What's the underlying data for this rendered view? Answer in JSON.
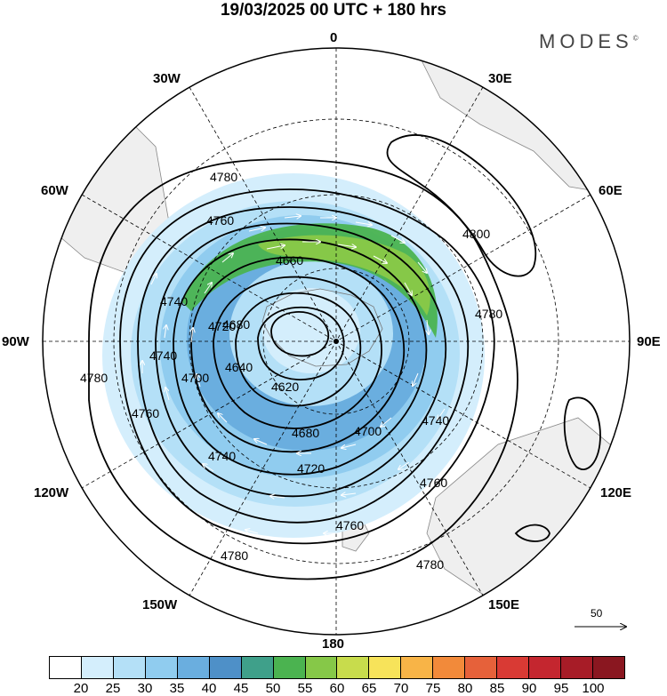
{
  "title": "19/03/2025  00 UTC  + 180 hrs",
  "brand": "MODES",
  "brand_mark": "©",
  "longitude_labels": {
    "top": "0",
    "tr": "30E",
    "tl": "30W",
    "r1": "60E",
    "l1": "60W",
    "right": "90E",
    "left": "90W",
    "r2": "120E",
    "l2": "120W",
    "br": "150E",
    "bl": "150W",
    "bottom": "180"
  },
  "contour_labels": [
    "4780",
    "4760",
    "4740",
    "4740",
    "4720",
    "4700",
    "4680",
    "4660",
    "4640",
    "4620",
    "4800",
    "4780",
    "4780",
    "4760",
    "4700",
    "4680",
    "4720",
    "4760",
    "4780",
    "4740",
    "4760",
    "4740",
    "4780"
  ],
  "vector_reference": "50",
  "colorbar": {
    "colors": [
      "#ffffff",
      "#d4eefc",
      "#b4e0f7",
      "#90ccef",
      "#6aaedf",
      "#4e90c8",
      "#3fa08a",
      "#4bb350",
      "#86c848",
      "#c8dc4c",
      "#f7e35a",
      "#f8b447",
      "#f28a3a",
      "#e6613a",
      "#d93a34",
      "#c4262f",
      "#a71c27",
      "#8a1720"
    ],
    "ticks": [
      "20",
      "25",
      "30",
      "35",
      "40",
      "45",
      "50",
      "55",
      "60",
      "65",
      "70",
      "75",
      "80",
      "85",
      "90",
      "95",
      "100"
    ]
  }
}
